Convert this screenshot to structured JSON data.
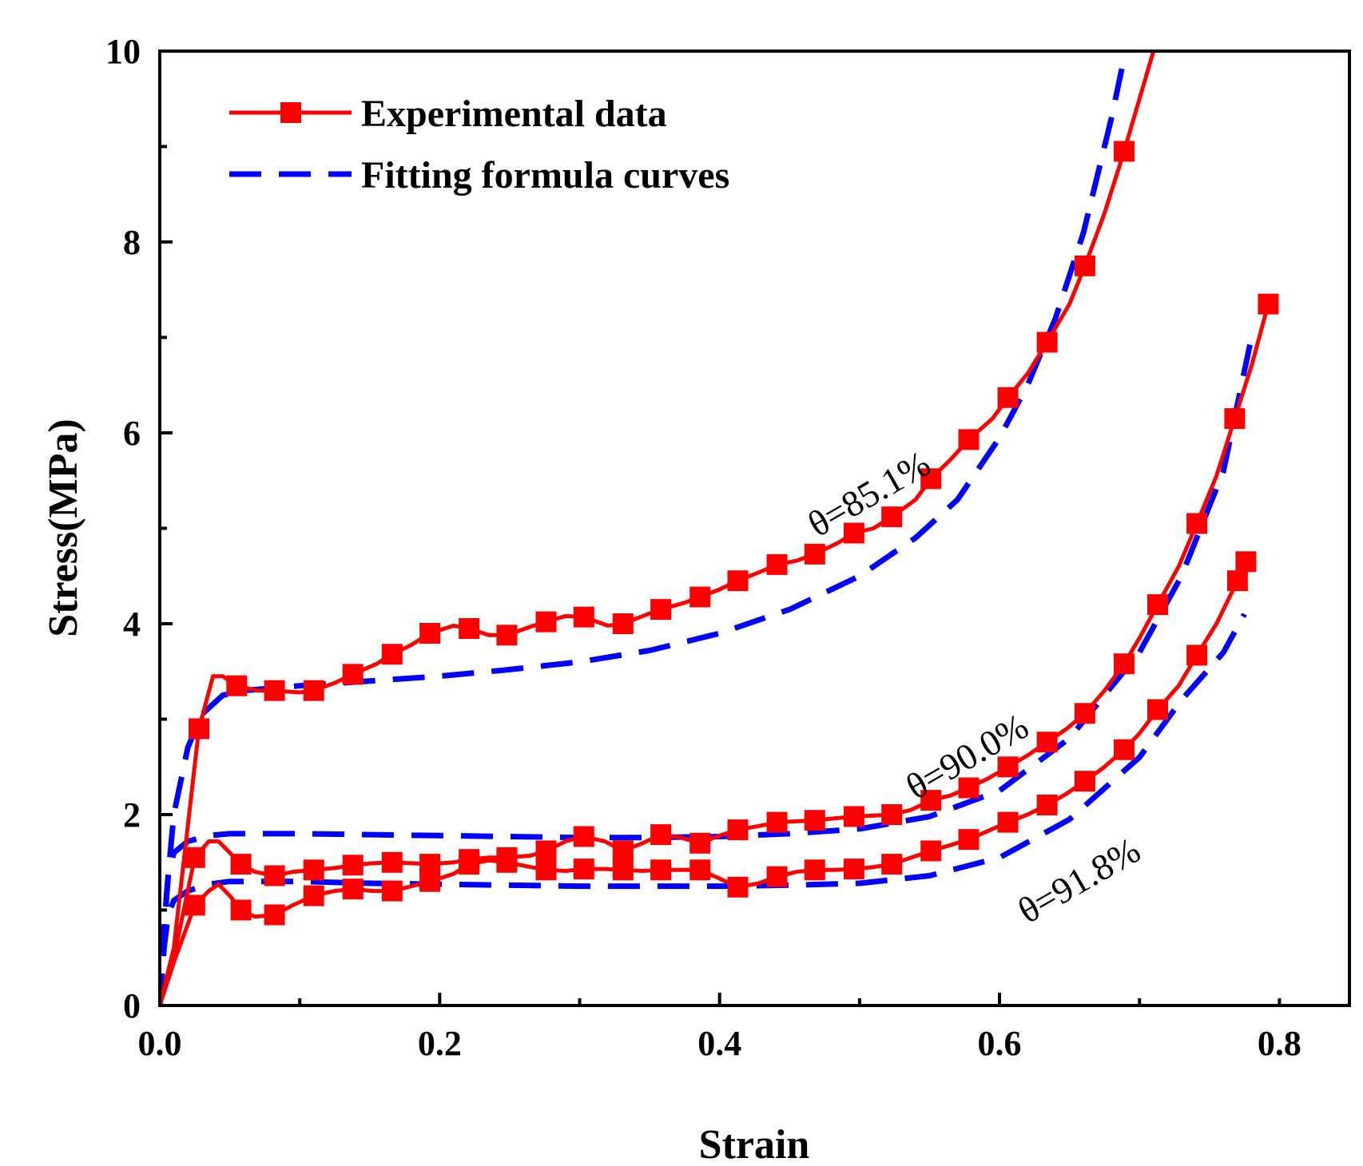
{
  "chart_data": {
    "type": "line",
    "title": "",
    "xlabel": "Strain",
    "ylabel": "Stress(MPa)",
    "xlim": [
      0,
      0.85
    ],
    "ylim": [
      0,
      10
    ],
    "x_ticks": [
      "0.0",
      "0.2",
      "0.4",
      "0.6",
      "0.8"
    ],
    "y_ticks": [
      "0",
      "2",
      "4",
      "6",
      "8",
      "10"
    ],
    "grid": false,
    "legend": {
      "position": "top-left",
      "entries": [
        {
          "label": "Experimental data",
          "style": "solid-square-marker"
        },
        {
          "label": "Fitting formula curves",
          "style": "dashed"
        }
      ]
    },
    "colors": {
      "experimental": "#ff0000",
      "fitting": "#0000ff"
    },
    "annotations": [
      {
        "text": "θ=85.1%",
        "x": 0.47,
        "y": 4.9
      },
      {
        "text": "θ=90.0%",
        "x": 0.54,
        "y": 2.15
      },
      {
        "text": "θ=91.8%",
        "x": 0.62,
        "y": 0.85
      }
    ],
    "series": [
      {
        "name": "Experimental data θ=85.1%",
        "kind": "experimental",
        "x": [
          0.0,
          0.01,
          0.028,
          0.038,
          0.045,
          0.055,
          0.07,
          0.082,
          0.1,
          0.11,
          0.125,
          0.138,
          0.155,
          0.166,
          0.18,
          0.193,
          0.21,
          0.221,
          0.235,
          0.248,
          0.265,
          0.276,
          0.29,
          0.303,
          0.32,
          0.331,
          0.345,
          0.358,
          0.375,
          0.386,
          0.4,
          0.413,
          0.43,
          0.441,
          0.455,
          0.468,
          0.485,
          0.496,
          0.51,
          0.523,
          0.54,
          0.551,
          0.565,
          0.578,
          0.595,
          0.606,
          0.62,
          0.634,
          0.65,
          0.661,
          0.675,
          0.689,
          0.7,
          0.71
        ],
        "y": [
          0.0,
          0.6,
          2.9,
          3.45,
          3.45,
          3.35,
          3.3,
          3.3,
          3.28,
          3.3,
          3.38,
          3.47,
          3.58,
          3.68,
          3.78,
          3.9,
          3.98,
          3.95,
          3.88,
          3.88,
          3.97,
          4.02,
          4.08,
          4.07,
          3.98,
          4.0,
          4.08,
          4.15,
          4.22,
          4.28,
          4.36,
          4.45,
          4.55,
          4.62,
          4.66,
          4.73,
          4.85,
          4.95,
          5.0,
          5.12,
          5.3,
          5.52,
          5.72,
          5.93,
          6.15,
          6.37,
          6.62,
          6.95,
          7.35,
          7.75,
          8.3,
          8.95,
          9.5,
          10.0
        ],
        "markers_x": [
          0.028,
          0.055,
          0.082,
          0.11,
          0.138,
          0.166,
          0.193,
          0.221,
          0.248,
          0.276,
          0.303,
          0.331,
          0.358,
          0.386,
          0.413,
          0.441,
          0.468,
          0.496,
          0.523,
          0.551,
          0.578,
          0.606,
          0.634,
          0.661,
          0.689
        ],
        "markers_y": [
          2.9,
          3.35,
          3.3,
          3.3,
          3.47,
          3.68,
          3.9,
          3.95,
          3.88,
          4.02,
          4.07,
          4.0,
          4.15,
          4.28,
          4.45,
          4.62,
          4.73,
          4.95,
          5.12,
          5.52,
          5.93,
          6.37,
          6.95,
          7.75,
          8.95
        ]
      },
      {
        "name": "Experimental data θ=90.0%",
        "kind": "experimental",
        "x": [
          0.0,
          0.01,
          0.025,
          0.035,
          0.042,
          0.05,
          0.058,
          0.068,
          0.082,
          0.095,
          0.11,
          0.125,
          0.138,
          0.152,
          0.166,
          0.18,
          0.193,
          0.21,
          0.221,
          0.235,
          0.248,
          0.265,
          0.276,
          0.29,
          0.303,
          0.318,
          0.331,
          0.345,
          0.358,
          0.372,
          0.386,
          0.4,
          0.413,
          0.428,
          0.441,
          0.455,
          0.468,
          0.482,
          0.496,
          0.51,
          0.523,
          0.537,
          0.551,
          0.565,
          0.578,
          0.592,
          0.606,
          0.62,
          0.634,
          0.648,
          0.661,
          0.675,
          0.689,
          0.7,
          0.713,
          0.728,
          0.741,
          0.755,
          0.768,
          0.78,
          0.792
        ],
        "y": [
          0.0,
          0.5,
          1.55,
          1.72,
          1.72,
          1.6,
          1.48,
          1.4,
          1.36,
          1.4,
          1.42,
          1.44,
          1.47,
          1.49,
          1.5,
          1.49,
          1.48,
          1.5,
          1.53,
          1.55,
          1.55,
          1.57,
          1.62,
          1.72,
          1.77,
          1.72,
          1.62,
          1.7,
          1.79,
          1.76,
          1.7,
          1.78,
          1.84,
          1.88,
          1.92,
          1.93,
          1.94,
          1.96,
          1.98,
          1.99,
          2.0,
          2.05,
          2.15,
          2.2,
          2.28,
          2.38,
          2.5,
          2.62,
          2.76,
          2.9,
          3.06,
          3.3,
          3.58,
          3.85,
          4.2,
          4.6,
          5.05,
          5.55,
          6.15,
          6.7,
          7.35
        ],
        "markers_x": [
          0.025,
          0.058,
          0.082,
          0.11,
          0.138,
          0.166,
          0.193,
          0.221,
          0.248,
          0.276,
          0.303,
          0.331,
          0.358,
          0.386,
          0.413,
          0.441,
          0.468,
          0.496,
          0.523,
          0.551,
          0.578,
          0.606,
          0.634,
          0.661,
          0.689,
          0.713,
          0.741,
          0.768,
          0.792
        ],
        "markers_y": [
          1.55,
          1.48,
          1.36,
          1.42,
          1.47,
          1.5,
          1.48,
          1.53,
          1.55,
          1.62,
          1.77,
          1.62,
          1.79,
          1.7,
          1.84,
          1.92,
          1.94,
          1.98,
          2.0,
          2.15,
          2.28,
          2.5,
          2.76,
          3.06,
          3.58,
          4.2,
          5.05,
          6.15,
          7.35
        ]
      },
      {
        "name": "Experimental data θ=91.8%",
        "kind": "experimental",
        "x": [
          0.0,
          0.01,
          0.025,
          0.035,
          0.042,
          0.05,
          0.058,
          0.068,
          0.082,
          0.095,
          0.11,
          0.125,
          0.138,
          0.152,
          0.166,
          0.18,
          0.193,
          0.21,
          0.221,
          0.235,
          0.248,
          0.265,
          0.276,
          0.29,
          0.303,
          0.318,
          0.331,
          0.345,
          0.358,
          0.372,
          0.386,
          0.4,
          0.413,
          0.428,
          0.441,
          0.455,
          0.468,
          0.482,
          0.496,
          0.51,
          0.523,
          0.537,
          0.551,
          0.565,
          0.578,
          0.592,
          0.606,
          0.62,
          0.634,
          0.648,
          0.661,
          0.675,
          0.689,
          0.7,
          0.713,
          0.728,
          0.741,
          0.755,
          0.77,
          0.776
        ],
        "y": [
          0.0,
          0.45,
          1.05,
          1.2,
          1.27,
          1.15,
          1.0,
          0.93,
          0.95,
          1.05,
          1.15,
          1.2,
          1.22,
          1.2,
          1.2,
          1.25,
          1.3,
          1.38,
          1.48,
          1.52,
          1.5,
          1.45,
          1.42,
          1.41,
          1.43,
          1.43,
          1.42,
          1.41,
          1.42,
          1.42,
          1.42,
          1.33,
          1.24,
          1.28,
          1.35,
          1.4,
          1.42,
          1.42,
          1.43,
          1.45,
          1.48,
          1.55,
          1.62,
          1.68,
          1.74,
          1.83,
          1.92,
          2.0,
          2.1,
          2.22,
          2.35,
          2.5,
          2.68,
          2.85,
          3.1,
          3.35,
          3.67,
          4.0,
          4.45,
          4.65
        ],
        "markers_x": [
          0.025,
          0.058,
          0.082,
          0.11,
          0.138,
          0.166,
          0.193,
          0.221,
          0.248,
          0.276,
          0.303,
          0.331,
          0.358,
          0.386,
          0.413,
          0.441,
          0.468,
          0.496,
          0.523,
          0.551,
          0.578,
          0.606,
          0.634,
          0.661,
          0.689,
          0.713,
          0.741,
          0.77,
          0.776
        ],
        "markers_y": [
          1.05,
          1.0,
          0.95,
          1.15,
          1.22,
          1.2,
          1.3,
          1.48,
          1.5,
          1.42,
          1.43,
          1.42,
          1.42,
          1.42,
          1.24,
          1.35,
          1.42,
          1.43,
          1.48,
          1.62,
          1.74,
          1.92,
          2.1,
          2.35,
          2.68,
          3.1,
          3.67,
          4.45,
          4.65
        ]
      },
      {
        "name": "Fitting formula curve θ=85.1%",
        "kind": "fitting",
        "x": [
          0.0,
          0.005,
          0.01,
          0.02,
          0.03,
          0.045,
          0.06,
          0.1,
          0.15,
          0.2,
          0.25,
          0.3,
          0.35,
          0.4,
          0.45,
          0.5,
          0.54,
          0.57,
          0.6,
          0.62,
          0.64,
          0.66,
          0.68,
          0.69
        ],
        "y": [
          0.0,
          1.2,
          2.0,
          2.7,
          3.05,
          3.25,
          3.3,
          3.35,
          3.4,
          3.45,
          3.52,
          3.6,
          3.72,
          3.9,
          4.15,
          4.5,
          4.9,
          5.3,
          5.95,
          6.5,
          7.2,
          8.1,
          9.3,
          10.0
        ]
      },
      {
        "name": "Fitting formula curve θ=90.0%",
        "kind": "fitting",
        "x": [
          0.0,
          0.003,
          0.006,
          0.01,
          0.02,
          0.035,
          0.05,
          0.1,
          0.15,
          0.2,
          0.25,
          0.3,
          0.35,
          0.4,
          0.45,
          0.5,
          0.55,
          0.6,
          0.65,
          0.7,
          0.73,
          0.76,
          0.78
        ],
        "y": [
          0.0,
          0.8,
          1.35,
          1.6,
          1.72,
          1.78,
          1.8,
          1.8,
          1.79,
          1.78,
          1.77,
          1.76,
          1.76,
          1.77,
          1.8,
          1.85,
          1.98,
          2.25,
          2.8,
          3.7,
          4.5,
          5.6,
          7.0
        ]
      },
      {
        "name": "Fitting formula curve θ=91.8%",
        "kind": "fitting",
        "x": [
          0.0,
          0.003,
          0.006,
          0.01,
          0.02,
          0.035,
          0.05,
          0.1,
          0.15,
          0.2,
          0.25,
          0.3,
          0.35,
          0.4,
          0.45,
          0.5,
          0.55,
          0.6,
          0.65,
          0.7,
          0.73,
          0.76,
          0.775
        ],
        "y": [
          0.0,
          0.6,
          0.95,
          1.1,
          1.2,
          1.27,
          1.3,
          1.3,
          1.28,
          1.27,
          1.26,
          1.25,
          1.25,
          1.25,
          1.26,
          1.28,
          1.36,
          1.55,
          1.95,
          2.6,
          3.2,
          3.7,
          4.1
        ]
      }
    ]
  }
}
